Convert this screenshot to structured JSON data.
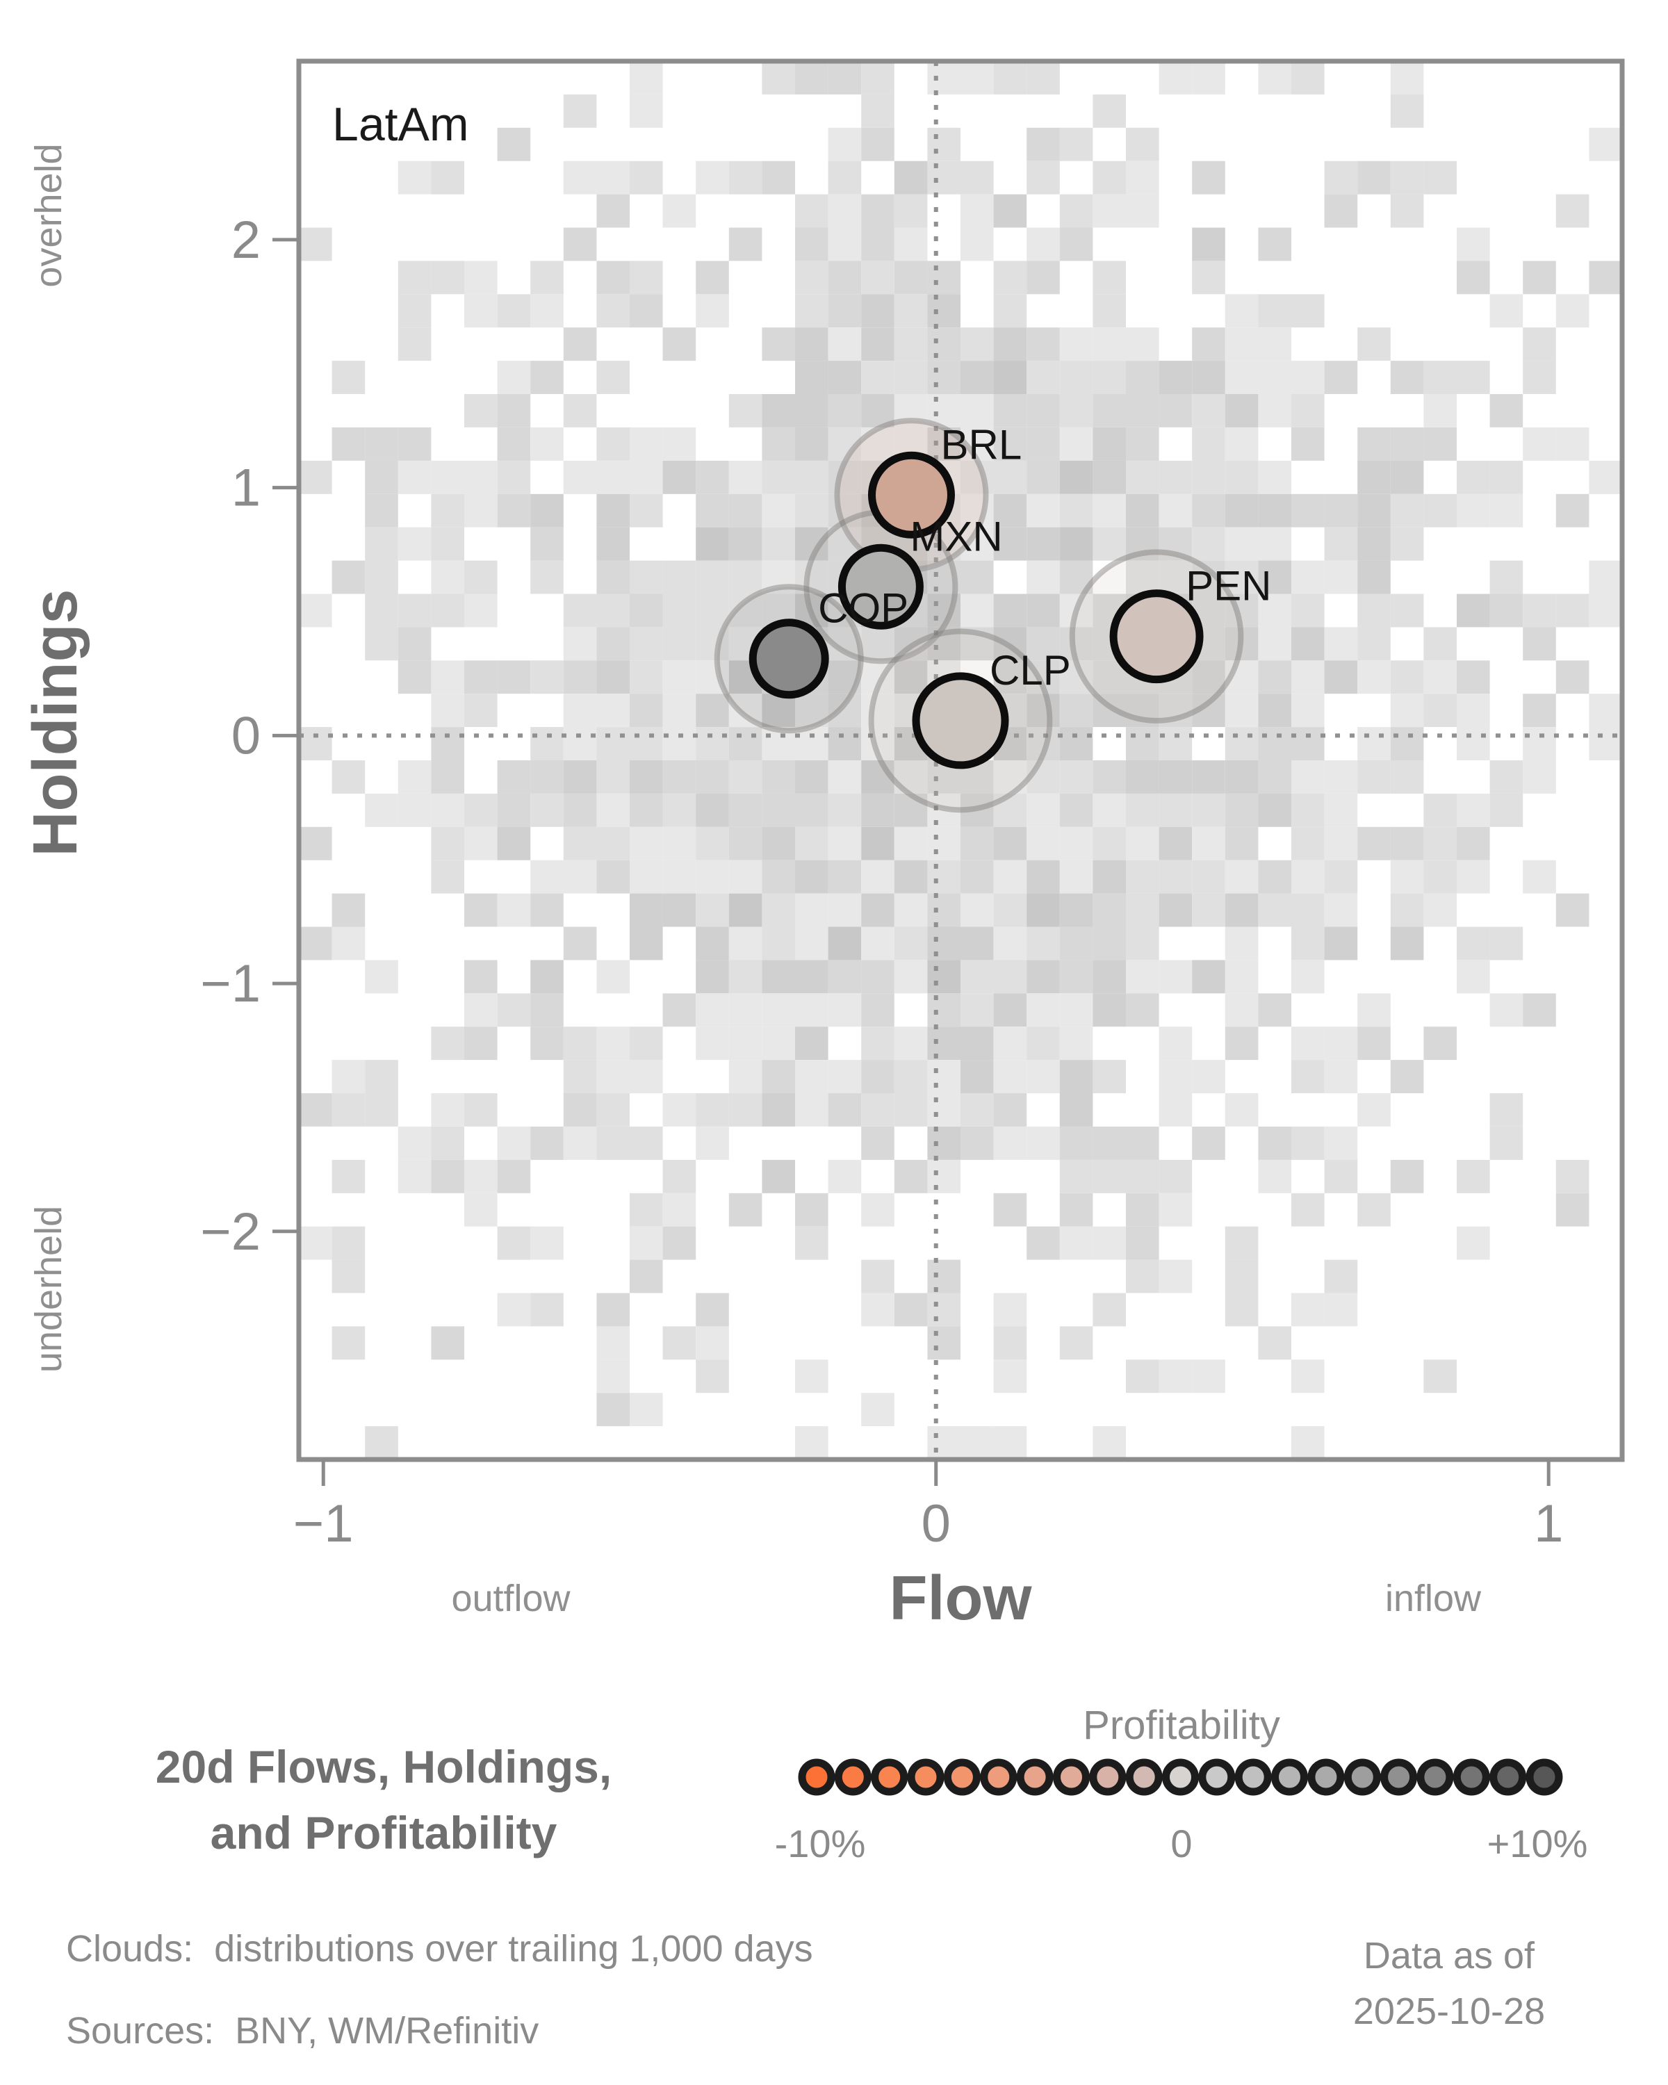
{
  "panel": {
    "region_label": "LatAm"
  },
  "caption": {
    "line1": "20d Flows, Holdings,",
    "line2": "and Profitability"
  },
  "chart_data": {
    "type": "scatter",
    "title": "20d Flows, Holdings, and Profitability",
    "xlabel": "Flow",
    "ylabel": "Holdings",
    "x_sub_labels": {
      "left": "outflow",
      "right": "inflow"
    },
    "y_sub_labels": {
      "top": "overheld",
      "bottom": "underheld"
    },
    "xlim": [
      -1.04,
      1.12
    ],
    "ylim": [
      -2.92,
      2.72
    ],
    "x_ticks": [
      -1,
      0,
      1
    ],
    "y_ticks": [
      -2,
      -1,
      0,
      1,
      2
    ],
    "zero_lines": true,
    "points": [
      {
        "label": "BRL",
        "flow": -0.04,
        "holdings": 0.97,
        "color": "#cfa593",
        "profitability_est_pct": -3,
        "marker_radius_px": 57,
        "cloud_radius_units": 0.3
      },
      {
        "label": "MXN",
        "flow": -0.09,
        "holdings": 0.6,
        "color": "#b1b1b0",
        "profitability_est_pct": 3,
        "marker_radius_px": 56,
        "cloud_radius_units": 0.3
      },
      {
        "label": "COP",
        "flow": -0.24,
        "holdings": 0.31,
        "color": "#8a8a8a",
        "profitability_est_pct": 6,
        "marker_radius_px": 52,
        "cloud_radius_units": 0.29
      },
      {
        "label": "CLP",
        "flow": 0.04,
        "holdings": 0.06,
        "color": "#cdc5c0",
        "profitability_est_pct": -0.5,
        "marker_radius_px": 64,
        "cloud_radius_units": 0.36
      },
      {
        "label": "PEN",
        "flow": 0.36,
        "holdings": 0.4,
        "color": "#d1c3bb",
        "profitability_est_pct": -1.5,
        "marker_radius_px": 62,
        "cloud_radius_units": 0.34
      }
    ],
    "background_histogram": {
      "description": "grayscale 2D histogram cloud: distributions over trailing 1,000 days, denser toward (0, 0.2), fading to white at edges",
      "cols": 40,
      "rows": 42,
      "seed": 1337,
      "center": {
        "flow": 0.02,
        "holdings": 0.15
      },
      "sigma": {
        "flow": 0.62,
        "holdings": 1.55
      },
      "fill_prob_scale": 1.25
    }
  },
  "legend": {
    "title": "Profitability",
    "min_label": "-10%",
    "mid_label": "0",
    "max_label": "+10%",
    "colors": [
      "#fb7136",
      "#fa7b43",
      "#f98450",
      "#f68d5e",
      "#f2956c",
      "#ed9d7b",
      "#e7a48a",
      "#e0ab98",
      "#d8b2a6",
      "#d2bab3",
      "#d6d3d0",
      "#c9c9c9",
      "#c0c0c0",
      "#b5b5b5",
      "#aaaaaa",
      "#9e9e9e",
      "#909090",
      "#828282",
      "#747474",
      "#656565",
      "#575757"
    ]
  },
  "footer": {
    "clouds_note": "Clouds:  distributions over trailing 1,000 days",
    "sources_note": "Sources:  BNY, WM/Refinitiv",
    "data_as_of_label": "Data as of",
    "data_as_of_date": "2025-10-28"
  },
  "colors": {
    "plot_border": "#8c8c8c",
    "zero_line": "#909090",
    "tick": "#8a8a8a",
    "tick_label": "#8a8a8a",
    "axis_label": "#6e6e6e",
    "sub_label": "#8f8f8f",
    "panel_title": "#1a1a1a",
    "point_label": "#141414",
    "caption": "#6f6f6f",
    "legend_text": "#8a8a8a",
    "footer_text": "#8a8a8a",
    "marker_stroke": "#0d0d0d",
    "cloud_ring": "#7f7d7a"
  }
}
